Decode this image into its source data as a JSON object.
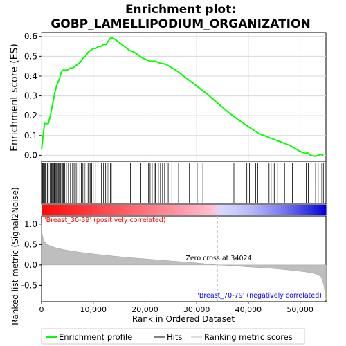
{
  "chart_data": {
    "type": "line",
    "title_line1": "Enrichment plot:",
    "title_line2": "GOBP_LAMELLIPODIUM_ORGANIZATION",
    "es_panel": {
      "ylabel": "Enrichment score (ES)",
      "ylim": [
        -0.03,
        0.62
      ],
      "yticks": [
        0.0,
        0.1,
        0.2,
        0.3,
        0.4,
        0.5,
        0.6
      ],
      "ytick_labels": [
        "0.0",
        "0.1",
        "0.2",
        "0.3",
        "0.4",
        "0.5",
        "0.6"
      ],
      "grid": true,
      "line_color": "#00ff00",
      "series": [
        {
          "x": [
            0,
            150,
            350,
            600,
            900,
            1300,
            1700,
            2000,
            2300,
            2600,
            2900,
            3200,
            3500,
            3800,
            4100,
            4500,
            5000,
            5500,
            6000,
            6500,
            7000,
            7500,
            8000,
            8500,
            9000,
            9500,
            10000,
            10500,
            11000,
            11500,
            12000,
            12500,
            13000,
            13400,
            14000,
            15000,
            16000,
            17000,
            18000,
            19000,
            20000,
            21000,
            22000,
            23000,
            24000,
            25000,
            26000,
            28000,
            30000,
            32000,
            34000,
            36000,
            38000,
            40000,
            42000,
            44000,
            45500,
            47000,
            48000,
            49000,
            50000,
            51000,
            51500,
            52000,
            53000,
            54000,
            54500
          ],
          "y": [
            0.03,
            0.06,
            0.11,
            0.16,
            0.16,
            0.16,
            0.2,
            0.24,
            0.28,
            0.32,
            0.35,
            0.37,
            0.39,
            0.42,
            0.43,
            0.43,
            0.43,
            0.44,
            0.44,
            0.45,
            0.46,
            0.47,
            0.49,
            0.5,
            0.52,
            0.53,
            0.54,
            0.54,
            0.55,
            0.55,
            0.56,
            0.56,
            0.58,
            0.595,
            0.59,
            0.57,
            0.55,
            0.53,
            0.52,
            0.5,
            0.485,
            0.475,
            0.475,
            0.465,
            0.46,
            0.445,
            0.43,
            0.39,
            0.35,
            0.31,
            0.265,
            0.22,
            0.18,
            0.145,
            0.11,
            0.09,
            0.075,
            0.06,
            0.05,
            0.035,
            0.02,
            0.01,
            0.012,
            0.0,
            -0.005,
            0.005,
            0.0
          ]
        }
      ]
    },
    "hits": {
      "positions": [
        120,
        200,
        320,
        480,
        620,
        760,
        900,
        1150,
        1300,
        1650,
        1800,
        1950,
        2100,
        2250,
        2400,
        2500,
        2650,
        2800,
        2950,
        3100,
        3300,
        3450,
        3700,
        3900,
        4050,
        4200,
        4500,
        4800,
        5200,
        5600,
        6000,
        6300,
        6700,
        7000,
        7400,
        7700,
        8000,
        8300,
        8600,
        9000,
        9200,
        9400,
        9700,
        10000,
        10400,
        10900,
        11300,
        11600,
        12000,
        12400,
        12700,
        13000,
        13300,
        13500,
        17200,
        19200,
        20700,
        21000,
        21400,
        21800,
        22000,
        22600,
        23000,
        23400,
        23800,
        24500,
        25200,
        26500,
        28600,
        30100,
        31200,
        32600,
        37200,
        39700,
        40200,
        41400,
        41800,
        42100,
        44000,
        44400,
        45000,
        45600,
        47000,
        47300,
        48500,
        51200,
        51600,
        53000,
        53500,
        54200,
        54500
      ]
    },
    "rank_panel": {
      "ylabel": "Ranked list metric (Signal2Noise)",
      "xlabel": "Rank in Ordered Dataset",
      "xlim": [
        0,
        55000
      ],
      "xticks": [
        0,
        10000,
        20000,
        30000,
        40000,
        50000
      ],
      "xtick_labels": [
        "0",
        "10,000",
        "20,000",
        "30,000",
        "40,000",
        "50,000"
      ],
      "ylim": [
        -0.9,
        1.2
      ],
      "yticks": [
        -0.5,
        0.0,
        0.5,
        1.0
      ],
      "ytick_labels": [
        "-0.5",
        "0.0",
        "0.5",
        "1.0"
      ],
      "x": [
        0,
        100,
        300,
        600,
        1000,
        2000,
        3000,
        5000,
        7000,
        10000,
        13000,
        16000,
        20000,
        25000,
        30000,
        34024,
        37000,
        40000,
        43000,
        46000,
        49000,
        51000,
        52500,
        53500,
        54200,
        54600,
        55000
      ],
      "values": [
        1.02,
        0.78,
        0.66,
        0.57,
        0.51,
        0.45,
        0.41,
        0.36,
        0.32,
        0.27,
        0.23,
        0.19,
        0.15,
        0.1,
        0.05,
        0.0,
        -0.02,
        -0.05,
        -0.07,
        -0.1,
        -0.14,
        -0.17,
        -0.2,
        -0.24,
        -0.33,
        -0.5,
        -0.85
      ],
      "zero_cross_label": "Zero cross at 34024",
      "zero_cross": 34024,
      "pos_label": "'Breast_30-39' (positively correlated)",
      "neg_label": "'Breast_70-79' (negatively correlated)"
    },
    "colors": {
      "es_line": "#00ff00",
      "hit_line": "#000000",
      "metric_fill": "#bebebe",
      "pos_text": "#ff0000",
      "neg_text": "#0000ff"
    },
    "legend": {
      "position": "bottom",
      "items": [
        "Enrichment profile",
        "Hits",
        "Ranking metric scores"
      ]
    }
  }
}
